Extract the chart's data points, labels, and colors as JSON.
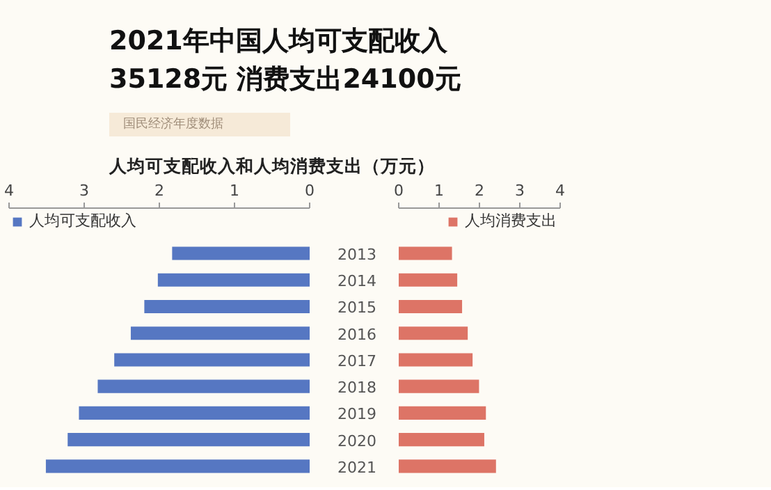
{
  "chart_data": [
    {
      "type": "bar",
      "orientation": "horizontal",
      "title": "2021年中国人均可支配收入\n35128元  消费支出24100元",
      "subtitle": "人均可支配收入和人均消费支出（万元）",
      "annotations": [
        "国民经济年度数据"
      ],
      "categories": [
        "2013",
        "2014",
        "2015",
        "2016",
        "2017",
        "2018",
        "2019",
        "2020",
        "2021"
      ],
      "series": [
        {
          "name": "人均可支配收入",
          "color": "#5677c2",
          "values": [
            1.83,
            2.02,
            2.2,
            2.38,
            2.6,
            2.82,
            3.07,
            3.22,
            3.51
          ]
        }
      ],
      "xlim": [
        4,
        0
      ],
      "xticks": [
        4,
        3,
        2,
        1,
        0
      ],
      "tick_labels": "x",
      "legend": "top left",
      "grid": false
    },
    {
      "type": "bar",
      "orientation": "horizontal",
      "categories": [
        "2013",
        "2014",
        "2015",
        "2016",
        "2017",
        "2018",
        "2019",
        "2020",
        "2021"
      ],
      "series": [
        {
          "name": "人均消费支出",
          "color": "#dd7466",
          "values": [
            1.32,
            1.45,
            1.57,
            1.71,
            1.83,
            1.99,
            2.16,
            2.12,
            2.41
          ]
        }
      ],
      "xlim": [
        0,
        4
      ],
      "xticks": [
        0,
        1,
        2,
        3,
        4
      ],
      "legend": "top right",
      "grid": false
    }
  ]
}
